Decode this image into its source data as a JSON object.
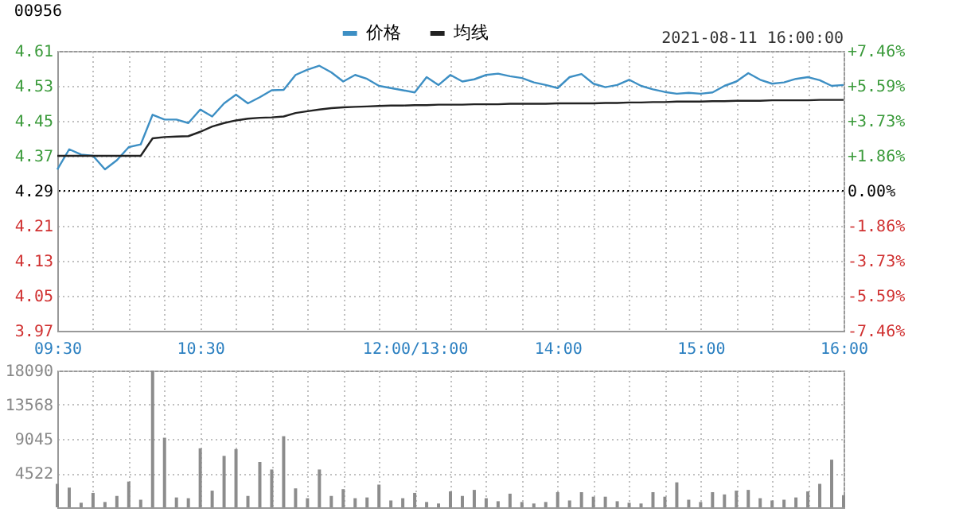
{
  "chart_data": [
    {
      "type": "line",
      "title": "00956",
      "annotations": [
        "2021-08-11 16:00:00"
      ],
      "categories": [
        "09:30",
        null,
        null,
        null,
        null,
        null,
        null,
        null,
        null,
        null,
        null,
        null,
        "10:30",
        null,
        null,
        null,
        null,
        null,
        null,
        null,
        null,
        null,
        null,
        null,
        null,
        null,
        null,
        null,
        null,
        null,
        "12:00/13:00",
        null,
        null,
        null,
        null,
        null,
        null,
        null,
        null,
        null,
        null,
        null,
        "14:00",
        null,
        null,
        null,
        null,
        null,
        null,
        null,
        null,
        null,
        null,
        null,
        "15:00",
        null,
        null,
        null,
        null,
        null,
        null,
        null,
        null,
        null,
        null,
        null,
        "16:00"
      ],
      "ylim": [
        3.97,
        4.61
      ],
      "yticks": [
        3.97,
        4.05,
        4.13,
        4.21,
        4.29,
        4.37,
        4.45,
        4.53,
        4.61
      ],
      "y2lim": [
        -7.46,
        7.46
      ],
      "y2ticks": [
        {
          "value": -7.46,
          "label": "-7.46%"
        },
        {
          "value": -5.59,
          "label": "-5.59%"
        },
        {
          "value": -3.73,
          "label": "-3.73%"
        },
        {
          "value": -1.86,
          "label": "-1.86%"
        },
        {
          "value": 0,
          "label": "0.00%"
        },
        {
          "value": 1.86,
          "label": "+1.86%"
        },
        {
          "value": 3.73,
          "label": "+3.73%"
        },
        {
          "value": 5.59,
          "label": "+5.59%"
        },
        {
          "value": 7.46,
          "label": "+7.46%"
        }
      ],
      "grid": true,
      "legend": "top",
      "ref_lines": [
        {
          "axis": "y",
          "value": 4.29,
          "color": "#000000",
          "line_style": "dotted"
        }
      ],
      "series": [
        {
          "name": "价格",
          "color": "#3d8fc4",
          "values": [
            4.339,
            4.385,
            4.373,
            4.37,
            4.339,
            4.36,
            4.39,
            4.396,
            4.464,
            4.453,
            4.453,
            4.445,
            4.476,
            4.46,
            4.49,
            4.51,
            4.49,
            4.504,
            4.52,
            4.521,
            4.555,
            4.567,
            4.576,
            4.561,
            4.54,
            4.555,
            4.546,
            4.53,
            4.525,
            4.52,
            4.515,
            4.55,
            4.532,
            4.555,
            4.54,
            4.545,
            4.555,
            4.558,
            4.552,
            4.548,
            4.538,
            4.532,
            4.525,
            4.55,
            4.557,
            4.535,
            4.527,
            4.532,
            4.544,
            4.53,
            4.522,
            4.516,
            4.512,
            4.514,
            4.512,
            4.515,
            4.53,
            4.54,
            4.559,
            4.544,
            4.535,
            4.538,
            4.546,
            4.55,
            4.543,
            4.53,
            4.532
          ]
        },
        {
          "name": "均线",
          "color": "#222222",
          "values": [
            4.37,
            4.37,
            4.37,
            4.37,
            4.37,
            4.37,
            4.37,
            4.37,
            4.41,
            4.413,
            4.414,
            4.415,
            4.425,
            4.437,
            4.445,
            4.451,
            4.455,
            4.457,
            4.458,
            4.46,
            4.468,
            4.472,
            4.476,
            4.479,
            4.481,
            4.482,
            4.483,
            4.484,
            4.485,
            4.485,
            4.486,
            4.486,
            4.487,
            4.487,
            4.487,
            4.488,
            4.488,
            4.488,
            4.489,
            4.489,
            4.489,
            4.489,
            4.49,
            4.49,
            4.49,
            4.49,
            4.491,
            4.491,
            4.492,
            4.492,
            4.493,
            4.493,
            4.494,
            4.494,
            4.494,
            4.495,
            4.495,
            4.496,
            4.496,
            4.496,
            4.497,
            4.497,
            4.497,
            4.497,
            4.498,
            4.498,
            4.498
          ]
        }
      ]
    },
    {
      "type": "bar",
      "tick_labels": "y",
      "categories": [
        null,
        null,
        null,
        null,
        null,
        null,
        null,
        null,
        null,
        null,
        null,
        null,
        null,
        null,
        null,
        null,
        null,
        null,
        null,
        null,
        null,
        null,
        null,
        null,
        null,
        null,
        null,
        null,
        null,
        null,
        null,
        null,
        null,
        null,
        null,
        null,
        null,
        null,
        null,
        null,
        null,
        null,
        null,
        null,
        null,
        null,
        null,
        null,
        null,
        null,
        null,
        null,
        null,
        null,
        null,
        null,
        null,
        null,
        null,
        null,
        null,
        null,
        null,
        null,
        null,
        null,
        null
      ],
      "ylim": [
        0,
        18090
      ],
      "yticks": [
        4522,
        9045,
        13568,
        18090
      ],
      "grid": true,
      "series": [
        {
          "color": "#8c8c8c",
          "values": [
            3100,
            2600,
            600,
            1900,
            700,
            1500,
            3400,
            1000,
            18090,
            9200,
            1300,
            1200,
            7800,
            2200,
            6800,
            7700,
            1500,
            6000,
            5000,
            9400,
            2500,
            1200,
            5000,
            1500,
            2400,
            1200,
            1300,
            3000,
            900,
            1200,
            1900,
            700,
            500,
            2100,
            1500,
            2300,
            1200,
            800,
            1800,
            700,
            500,
            700,
            2000,
            900,
            2000,
            1400,
            1400,
            800,
            600,
            500,
            2000,
            1400,
            3300,
            1000,
            700,
            2000,
            1700,
            2200,
            2300,
            1200,
            900,
            1000,
            1300,
            2100,
            3100,
            6300,
            1600
          ]
        }
      ]
    }
  ]
}
